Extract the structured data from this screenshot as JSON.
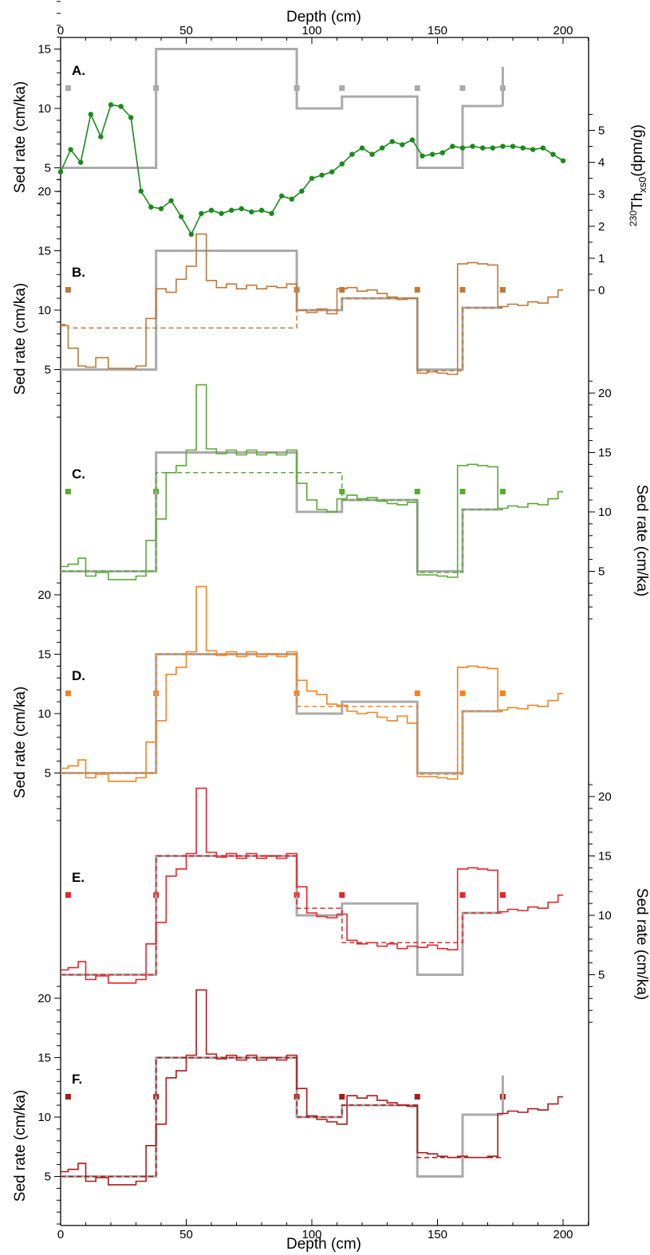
{
  "figure": {
    "top_axis_label": "Depth (cm)",
    "bottom_axis_label": "Depth (cm)",
    "x_ticks": [
      0,
      50,
      100,
      150,
      200
    ],
    "th_axis_label_prefix": "230",
    "th_axis_label_main": "Th",
    "th_axis_label_sub": "xs0",
    "th_axis_label_suffix": "(dpm/g)",
    "sed_axis_label": "Sed rate (cm/ka)"
  },
  "colors": {
    "gray": "#aaaaaa",
    "A_green": "#1a8a1a",
    "B_brown": "#c07838",
    "C_green": "#5aaa35",
    "D_orange": "#f5821f",
    "E_red": "#e8242a",
    "F_darkred": "#b01818"
  },
  "chart_data": [
    {
      "panel": "A.",
      "type": "line",
      "xlim": [
        0,
        210
      ],
      "xlabel": "Depth (cm)",
      "ylabel": "Sed rate (cm/ka)",
      "ylim": [
        0,
        21
      ],
      "yticks": [
        5,
        10,
        15,
        20
      ],
      "y2label": "230Th xs0 (dpm/g)",
      "y2ticks": [
        0,
        1,
        2,
        3,
        4,
        5
      ],
      "y2lim": [
        -1,
        6
      ],
      "markers_x": [
        3,
        38,
        94,
        112,
        142,
        160,
        176
      ],
      "marker_color": "#aaaaaa",
      "gray_step": {
        "edges": [
          0,
          38,
          94,
          112,
          142,
          160,
          176
        ],
        "values": [
          5,
          15,
          10,
          11,
          5,
          10.2
        ],
        "end_tick": [
          10.2,
          13.5
        ]
      },
      "series": [
        {
          "x": [
            0,
            4,
            8,
            12,
            16,
            20,
            24,
            28,
            32,
            36,
            40,
            44,
            48,
            52,
            56,
            60,
            64,
            68,
            72,
            76,
            80,
            84,
            88,
            92,
            96,
            100,
            104,
            108,
            112,
            116,
            120,
            124,
            128,
            132,
            136,
            140,
            144,
            148,
            152,
            156,
            160,
            164,
            168,
            172,
            176,
            180,
            184,
            188,
            192,
            196,
            200
          ],
          "values": [
            3.7,
            4.4,
            4.0,
            5.5,
            4.8,
            5.8,
            5.75,
            5.4,
            3.1,
            2.6,
            2.55,
            2.8,
            2.3,
            1.75,
            2.4,
            2.5,
            2.4,
            2.5,
            2.55,
            2.45,
            2.5,
            2.4,
            2.95,
            2.85,
            3.1,
            3.5,
            3.6,
            3.7,
            3.95,
            4.25,
            4.45,
            4.25,
            4.45,
            4.65,
            4.55,
            4.7,
            4.2,
            4.25,
            4.3,
            4.5,
            4.45,
            4.5,
            4.45,
            4.45,
            4.5,
            4.5,
            4.45,
            4.4,
            4.45,
            4.25,
            4.05
          ]
        }
      ]
    },
    {
      "panel": "B.",
      "type": "line",
      "xlim": [
        0,
        210
      ],
      "ylabel": "Sed rate (cm/ka)",
      "ylim": [
        0,
        21
      ],
      "yticks": [
        5,
        10,
        15,
        20
      ],
      "markers_x": [
        3,
        94,
        112,
        142,
        160,
        176
      ],
      "marker_color": "#c07838",
      "gray_step": {
        "edges": [
          0,
          38,
          94,
          112,
          142,
          160,
          176
        ],
        "values": [
          5,
          15,
          10,
          11,
          5,
          10.2
        ],
        "end_tick": null
      },
      "dashed_step": {
        "edges": [
          0,
          3,
          94,
          112,
          142,
          160,
          176
        ],
        "values": [
          8.8,
          8.5,
          10,
          11,
          4.9,
          10.2
        ]
      },
      "series": [
        {
          "edges": [
            0,
            3,
            7,
            10,
            14,
            19,
            25,
            30,
            34,
            38,
            42,
            46,
            50,
            54,
            58,
            62,
            66,
            70,
            74,
            78,
            82,
            86,
            90,
            94,
            98,
            102,
            106,
            110,
            114,
            118,
            122,
            126,
            130,
            134,
            138,
            142,
            146,
            150,
            154,
            158,
            162,
            166,
            170,
            174,
            178,
            182,
            186,
            190,
            194,
            198,
            200
          ],
          "values": [
            8.7,
            6.8,
            5.3,
            5.2,
            6.0,
            5.1,
            5.1,
            5.3,
            9.3,
            11.8,
            11.5,
            12.6,
            13.7,
            16.4,
            12.5,
            11.9,
            12.2,
            11.8,
            12.1,
            11.8,
            12.0,
            11.9,
            12.2,
            10.0,
            9.8,
            10.1,
            9.7,
            11.8,
            11.9,
            11.6,
            11.7,
            11.4,
            11.1,
            10.9,
            11.0,
            4.7,
            4.8,
            4.7,
            4.6,
            13.9,
            14.0,
            13.9,
            13.8,
            10.3,
            10.5,
            10.4,
            10.7,
            10.6,
            11.1,
            11.7
          ]
        }
      ]
    },
    {
      "panel": "C.",
      "type": "line",
      "xlim": [
        0,
        210
      ],
      "ylabel": "Sed rate (cm/ka)",
      "ylim": [
        0,
        21
      ],
      "yticks": [
        5,
        10,
        15,
        20
      ],
      "markers_x": [
        3,
        38,
        112,
        142,
        160,
        176
      ],
      "marker_color": "#5aaa35",
      "gray_step": {
        "edges": [
          0,
          38,
          94,
          112,
          142,
          160,
          176
        ],
        "values": [
          5,
          15,
          10,
          11,
          5,
          10.2
        ],
        "end_tick": null
      },
      "dashed_step": {
        "edges": [
          0,
          38,
          112,
          142,
          160,
          176
        ],
        "values": [
          5,
          13.3,
          11,
          4.9,
          10.2
        ]
      },
      "series": [
        {
          "edges": [
            0,
            3,
            7,
            10,
            14,
            19,
            25,
            30,
            34,
            38,
            42,
            46,
            50,
            54,
            58,
            62,
            66,
            70,
            74,
            78,
            82,
            86,
            90,
            94,
            98,
            102,
            106,
            110,
            114,
            118,
            122,
            126,
            130,
            134,
            138,
            142,
            146,
            150,
            154,
            158,
            162,
            166,
            170,
            174,
            178,
            182,
            186,
            190,
            194,
            198,
            200
          ],
          "values": [
            5.4,
            5.6,
            6.1,
            4.6,
            4.9,
            4.3,
            4.3,
            4.6,
            7.6,
            9.4,
            13.3,
            13.9,
            15.2,
            20.7,
            15.3,
            14.9,
            15.2,
            14.8,
            15.2,
            14.8,
            15.0,
            14.8,
            15.2,
            12.4,
            11.0,
            10.2,
            10.0,
            11.1,
            11.4,
            11.1,
            11.2,
            10.9,
            10.7,
            10.6,
            10.8,
            4.7,
            4.7,
            4.6,
            4.5,
            13.9,
            14.0,
            13.9,
            13.8,
            10.3,
            10.5,
            10.4,
            10.7,
            10.6,
            11.1,
            11.7
          ]
        }
      ]
    },
    {
      "panel": "D.",
      "type": "line",
      "xlim": [
        0,
        210
      ],
      "ylabel": "Sed rate (cm/ka)",
      "ylim": [
        0,
        21
      ],
      "yticks": [
        5,
        10,
        15,
        20
      ],
      "markers_x": [
        3,
        38,
        94,
        142,
        160,
        176
      ],
      "marker_color": "#f5821f",
      "gray_step": {
        "edges": [
          0,
          38,
          94,
          112,
          142,
          160,
          176
        ],
        "values": [
          5,
          15,
          10,
          11,
          5,
          10.2
        ],
        "end_tick": null
      },
      "dashed_step": {
        "edges": [
          0,
          38,
          94,
          142,
          160,
          176
        ],
        "values": [
          5,
          15,
          10.6,
          4.9,
          10.2
        ]
      },
      "series": [
        {
          "edges": [
            0,
            3,
            7,
            10,
            14,
            19,
            25,
            30,
            34,
            38,
            42,
            46,
            50,
            54,
            58,
            62,
            66,
            70,
            74,
            78,
            82,
            86,
            90,
            94,
            98,
            102,
            106,
            110,
            114,
            118,
            122,
            126,
            130,
            134,
            138,
            142,
            146,
            150,
            154,
            158,
            162,
            166,
            170,
            174,
            178,
            182,
            186,
            190,
            194,
            198,
            200
          ],
          "values": [
            5.4,
            5.6,
            6.1,
            4.6,
            4.9,
            4.3,
            4.3,
            4.6,
            7.6,
            9.4,
            13.3,
            13.9,
            15.2,
            20.7,
            15.3,
            14.9,
            15.2,
            14.8,
            15.2,
            14.8,
            15.0,
            14.8,
            15.2,
            12.8,
            11.9,
            11.6,
            10.8,
            10.7,
            10.2,
            10.0,
            10.1,
            9.7,
            9.4,
            9.8,
            9.2,
            4.7,
            4.7,
            4.6,
            4.5,
            13.9,
            14.0,
            13.9,
            13.8,
            10.3,
            10.5,
            10.4,
            10.7,
            10.6,
            11.1,
            11.7
          ]
        }
      ]
    },
    {
      "panel": "E.",
      "type": "line",
      "xlim": [
        0,
        210
      ],
      "ylabel": "Sed rate (cm/ka)",
      "ylim": [
        0,
        21
      ],
      "yticks": [
        5,
        10,
        15,
        20
      ],
      "markers_x": [
        3,
        38,
        94,
        112,
        160,
        176
      ],
      "marker_color": "#e8242a",
      "gray_step": {
        "edges": [
          0,
          38,
          94,
          112,
          142,
          160,
          176
        ],
        "values": [
          5,
          15,
          10,
          11,
          5,
          10.2
        ],
        "end_tick": null
      },
      "dashed_step": {
        "edges": [
          0,
          38,
          94,
          112,
          160,
          176
        ],
        "values": [
          5,
          15,
          10.6,
          7.7,
          10.2
        ]
      },
      "series": [
        {
          "edges": [
            0,
            3,
            7,
            10,
            14,
            19,
            25,
            30,
            34,
            38,
            42,
            46,
            50,
            54,
            58,
            62,
            66,
            70,
            74,
            78,
            82,
            86,
            90,
            94,
            98,
            102,
            106,
            110,
            114,
            118,
            122,
            126,
            130,
            134,
            138,
            142,
            146,
            150,
            154,
            158,
            162,
            166,
            170,
            174,
            178,
            182,
            186,
            190,
            194,
            198,
            200
          ],
          "values": [
            5.4,
            5.6,
            6.1,
            4.6,
            4.9,
            4.3,
            4.3,
            4.6,
            7.6,
            9.4,
            13.3,
            13.9,
            15.2,
            20.7,
            15.3,
            14.9,
            15.2,
            14.8,
            15.2,
            14.8,
            15.0,
            14.8,
            15.2,
            12.4,
            10.2,
            9.9,
            9.8,
            10.1,
            7.9,
            7.6,
            7.7,
            7.4,
            7.6,
            7.2,
            7.4,
            7.3,
            7.5,
            7.2,
            7.1,
            13.9,
            14.0,
            13.9,
            13.8,
            10.3,
            10.5,
            10.4,
            10.7,
            10.6,
            11.1,
            11.7
          ]
        }
      ]
    },
    {
      "panel": "F.",
      "type": "line",
      "xlim": [
        0,
        210
      ],
      "xlabel": "Depth (cm)",
      "ylabel": "Sed rate (cm/ka)",
      "ylim": [
        0,
        21
      ],
      "yticks": [
        5,
        10,
        15,
        20
      ],
      "markers_x": [
        3,
        38,
        94,
        112,
        142,
        176
      ],
      "marker_color": "#b01818",
      "gray_step": {
        "edges": [
          0,
          38,
          94,
          112,
          142,
          160,
          176
        ],
        "values": [
          5,
          15,
          10,
          11,
          5,
          10.2
        ],
        "end_tick": [
          10.2,
          13.5
        ]
      },
      "dashed_step": {
        "edges": [
          0,
          38,
          94,
          112,
          142,
          176
        ],
        "values": [
          5,
          15,
          10,
          11,
          6.6
        ]
      },
      "series": [
        {
          "edges": [
            0,
            3,
            7,
            10,
            14,
            19,
            25,
            30,
            34,
            38,
            42,
            46,
            50,
            54,
            58,
            62,
            66,
            70,
            74,
            78,
            82,
            86,
            90,
            94,
            98,
            102,
            106,
            110,
            114,
            118,
            122,
            126,
            130,
            134,
            138,
            142,
            146,
            150,
            154,
            158,
            162,
            166,
            170,
            174,
            178,
            182,
            186,
            190,
            194,
            198,
            200
          ],
          "values": [
            5.4,
            5.6,
            6.1,
            4.6,
            4.9,
            4.3,
            4.3,
            4.6,
            7.6,
            9.4,
            13.3,
            13.9,
            15.2,
            20.7,
            15.3,
            14.9,
            15.2,
            14.8,
            15.2,
            14.8,
            15.0,
            14.8,
            15.2,
            12.4,
            10.1,
            9.8,
            9.6,
            9.4,
            11.8,
            11.6,
            11.8,
            11.4,
            11.2,
            11.0,
            10.9,
            7.0,
            6.9,
            6.7,
            6.6,
            6.7,
            6.6,
            6.6,
            6.7,
            10.3,
            10.5,
            10.4,
            10.7,
            10.6,
            11.1,
            11.7
          ]
        }
      ]
    }
  ]
}
